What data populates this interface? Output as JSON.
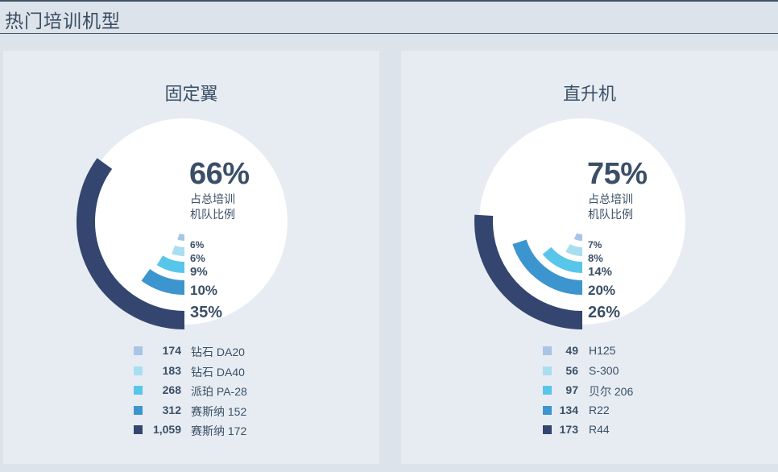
{
  "page": {
    "title": "热门培训机型"
  },
  "colors": [
    "#aac4e6",
    "#a9def0",
    "#58c6ea",
    "#3d95cf",
    "#34466f"
  ],
  "panels": [
    {
      "title": "固定翼",
      "big_pct": "66%",
      "desc_line1": "占总培训",
      "desc_line2": "机队比例",
      "chart_data": {
        "type": "radial-bar",
        "overall_share_pct": 66,
        "series": [
          {
            "label": "钻石 DA20",
            "value_text": "174",
            "value": 174,
            "pct_text": "6%",
            "pct": 6
          },
          {
            "label": "钻石 DA40",
            "value_text": "183",
            "value": 183,
            "pct_text": "6%",
            "pct": 6
          },
          {
            "label": "派珀 PA-28",
            "value_text": "268",
            "value": 268,
            "pct_text": "9%",
            "pct": 9
          },
          {
            "label": "赛斯纳 152",
            "value_text": "312",
            "value": 312,
            "pct_text": "10%",
            "pct": 10
          },
          {
            "label": "赛斯纳 172",
            "value_text": "1,059",
            "value": 1059,
            "pct_text": "35%",
            "pct": 35
          }
        ]
      }
    },
    {
      "title": "直升机",
      "big_pct": "75%",
      "desc_line1": "占总培训",
      "desc_line2": "机队比例",
      "chart_data": {
        "type": "radial-bar",
        "overall_share_pct": 75,
        "series": [
          {
            "label": "H125",
            "value_text": "49",
            "value": 49,
            "pct_text": "7%",
            "pct": 7
          },
          {
            "label": "S-300",
            "value_text": "56",
            "value": 56,
            "pct_text": "8%",
            "pct": 8
          },
          {
            "label": "贝尔 206",
            "value_text": "97",
            "value": 97,
            "pct_text": "14%",
            "pct": 14
          },
          {
            "label": "R22",
            "value_text": "134",
            "value": 134,
            "pct_text": "20%",
            "pct": 20
          },
          {
            "label": "R44",
            "value_text": "173",
            "value": 173,
            "pct_text": "26%",
            "pct": 26
          }
        ]
      }
    }
  ]
}
